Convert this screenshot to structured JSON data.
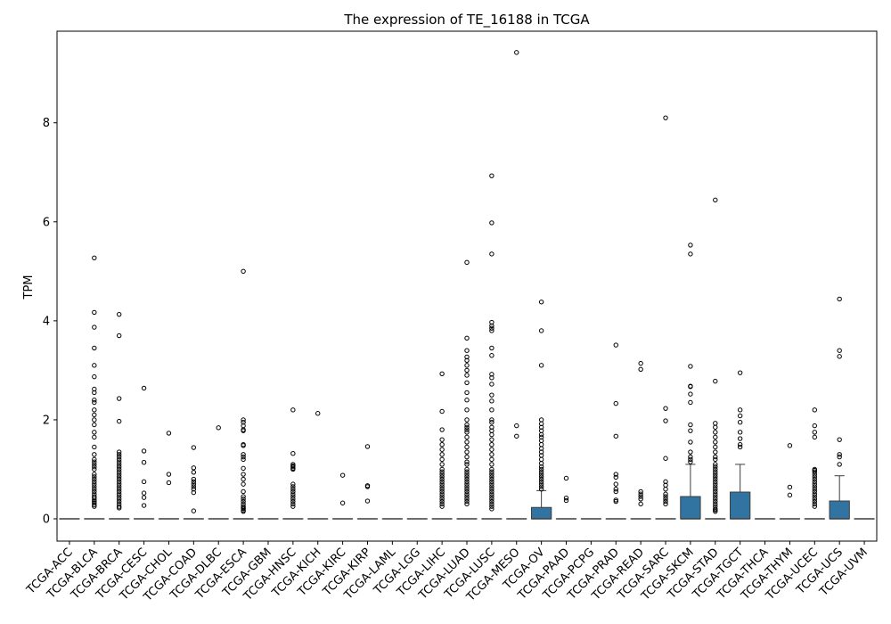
{
  "chart_data": {
    "type": "box",
    "title": "The expression of TE_16188 in TCGA",
    "xlabel": "",
    "ylabel": "TPM",
    "ylim": [
      -0.45,
      9.85
    ],
    "yticks": [
      "0",
      "2",
      "4",
      "6",
      "8"
    ],
    "grid": false,
    "box_color": "#3274a1",
    "categories": [
      "TCGA-ACC",
      "TCGA-BLCA",
      "TCGA-BRCA",
      "TCGA-CESC",
      "TCGA-CHOL",
      "TCGA-COAD",
      "TCGA-DLBC",
      "TCGA-ESCA",
      "TCGA-GBM",
      "TCGA-HNSC",
      "TCGA-KICH",
      "TCGA-KIRC",
      "TCGA-KIRP",
      "TCGA-LAML",
      "TCGA-LGG",
      "TCGA-LIHC",
      "TCGA-LUAD",
      "TCGA-LUSC",
      "TCGA-MESO",
      "TCGA-OV",
      "TCGA-PAAD",
      "TCGA-PCPG",
      "TCGA-PRAD",
      "TCGA-READ",
      "TCGA-SARC",
      "TCGA-SKCM",
      "TCGA-STAD",
      "TCGA-TGCT",
      "TCGA-THCA",
      "TCGA-THYM",
      "TCGA-UCEC",
      "TCGA-UCS",
      "TCGA-UVM"
    ],
    "boxes": [
      {
        "q1": 0,
        "median": 0,
        "q3": 0,
        "whisker_low": 0,
        "whisker_high": 0
      },
      {
        "q1": 0,
        "median": 0,
        "q3": 0,
        "whisker_low": 0,
        "whisker_high": 0
      },
      {
        "q1": 0,
        "median": 0,
        "q3": 0,
        "whisker_low": 0,
        "whisker_high": 0
      },
      {
        "q1": 0,
        "median": 0,
        "q3": 0,
        "whisker_low": 0,
        "whisker_high": 0
      },
      {
        "q1": 0,
        "median": 0,
        "q3": 0,
        "whisker_low": 0,
        "whisker_high": 0
      },
      {
        "q1": 0,
        "median": 0,
        "q3": 0,
        "whisker_low": 0,
        "whisker_high": 0
      },
      {
        "q1": 0,
        "median": 0,
        "q3": 0,
        "whisker_low": 0,
        "whisker_high": 0
      },
      {
        "q1": 0,
        "median": 0,
        "q3": 0,
        "whisker_low": 0,
        "whisker_high": 0
      },
      {
        "q1": 0,
        "median": 0,
        "q3": 0,
        "whisker_low": 0,
        "whisker_high": 0
      },
      {
        "q1": 0,
        "median": 0,
        "q3": 0,
        "whisker_low": 0,
        "whisker_high": 0
      },
      {
        "q1": 0,
        "median": 0,
        "q3": 0,
        "whisker_low": 0,
        "whisker_high": 0
      },
      {
        "q1": 0,
        "median": 0,
        "q3": 0,
        "whisker_low": 0,
        "whisker_high": 0
      },
      {
        "q1": 0,
        "median": 0,
        "q3": 0,
        "whisker_low": 0,
        "whisker_high": 0
      },
      {
        "q1": 0,
        "median": 0,
        "q3": 0,
        "whisker_low": 0,
        "whisker_high": 0
      },
      {
        "q1": 0,
        "median": 0,
        "q3": 0,
        "whisker_low": 0,
        "whisker_high": 0
      },
      {
        "q1": 0,
        "median": 0,
        "q3": 0,
        "whisker_low": 0,
        "whisker_high": 0
      },
      {
        "q1": 0,
        "median": 0,
        "q3": 0,
        "whisker_low": 0,
        "whisker_high": 0
      },
      {
        "q1": 0,
        "median": 0,
        "q3": 0,
        "whisker_low": 0,
        "whisker_high": 0
      },
      {
        "q1": 0,
        "median": 0,
        "q3": 0,
        "whisker_low": 0,
        "whisker_high": 0
      },
      {
        "q1": 0,
        "median": 0,
        "q3": 0.23,
        "whisker_low": 0,
        "whisker_high": 0.57
      },
      {
        "q1": 0,
        "median": 0,
        "q3": 0,
        "whisker_low": 0,
        "whisker_high": 0
      },
      {
        "q1": 0,
        "median": 0,
        "q3": 0,
        "whisker_low": 0,
        "whisker_high": 0
      },
      {
        "q1": 0,
        "median": 0,
        "q3": 0,
        "whisker_low": 0,
        "whisker_high": 0
      },
      {
        "q1": 0,
        "median": 0,
        "q3": 0,
        "whisker_low": 0,
        "whisker_high": 0
      },
      {
        "q1": 0,
        "median": 0,
        "q3": 0,
        "whisker_low": 0,
        "whisker_high": 0
      },
      {
        "q1": 0,
        "median": 0,
        "q3": 0.45,
        "whisker_low": 0,
        "whisker_high": 1.1
      },
      {
        "q1": 0,
        "median": 0,
        "q3": 0,
        "whisker_low": 0,
        "whisker_high": 0
      },
      {
        "q1": 0,
        "median": 0,
        "q3": 0.54,
        "whisker_low": 0,
        "whisker_high": 1.1
      },
      {
        "q1": 0,
        "median": 0,
        "q3": 0,
        "whisker_low": 0,
        "whisker_high": 0
      },
      {
        "q1": 0,
        "median": 0,
        "q3": 0,
        "whisker_low": 0,
        "whisker_high": 0
      },
      {
        "q1": 0,
        "median": 0,
        "q3": 0,
        "whisker_low": 0,
        "whisker_high": 0
      },
      {
        "q1": 0,
        "median": 0,
        "q3": 0.36,
        "whisker_low": 0,
        "whisker_high": 0.87
      },
      {
        "q1": 0,
        "median": 0,
        "q3": 0,
        "whisker_low": 0,
        "whisker_high": 0
      }
    ],
    "outliers": [
      [],
      [
        5.27,
        4.17,
        3.87,
        3.45,
        3.1,
        2.87,
        2.62,
        2.55,
        2.4,
        2.35,
        2.2,
        2.1,
        2.0,
        1.9,
        1.75,
        1.65,
        1.45,
        1.3,
        1.2,
        1.15,
        1.1,
        1.05,
        1.0,
        0.9,
        0.85,
        0.8,
        0.75,
        0.7,
        0.65,
        0.6,
        0.55,
        0.5,
        0.45,
        0.42,
        0.38,
        0.35,
        0.32,
        0.28,
        0.25
      ],
      [
        4.13,
        3.7,
        2.43,
        1.97,
        1.35,
        1.3,
        1.25,
        1.2,
        1.15,
        1.1,
        1.05,
        1.0,
        0.95,
        0.9,
        0.85,
        0.8,
        0.75,
        0.7,
        0.65,
        0.6,
        0.55,
        0.5,
        0.45,
        0.4,
        0.35,
        0.3,
        0.25,
        0.22
      ],
      [
        2.64,
        1.37,
        1.14,
        0.75,
        0.52,
        0.43,
        0.27
      ],
      [
        1.73,
        0.9,
        0.73
      ],
      [
        1.44,
        1.03,
        0.94,
        0.8,
        0.75,
        0.7,
        0.65,
        0.6,
        0.53,
        0.16
      ],
      [
        1.84
      ],
      [
        5.0,
        2.0,
        1.95,
        1.88,
        1.8,
        1.78,
        1.5,
        1.48,
        1.3,
        1.25,
        1.2,
        1.02,
        0.9,
        0.8,
        0.7,
        0.55,
        0.45,
        0.4,
        0.35,
        0.3,
        0.25,
        0.22,
        0.2,
        0.17,
        0.15
      ],
      [],
      [
        2.2,
        1.32,
        1.1,
        1.07,
        1.05,
        1.02,
        1.0,
        0.7,
        0.65,
        0.6,
        0.55,
        0.5,
        0.45,
        0.4,
        0.35,
        0.3,
        0.25
      ],
      [
        2.13
      ],
      [
        0.88,
        0.32
      ],
      [
        1.46,
        0.67,
        0.65,
        0.36
      ],
      [],
      [],
      [
        2.93,
        2.17,
        1.8,
        1.6,
        1.5,
        1.4,
        1.3,
        1.2,
        1.1,
        1.0,
        0.95,
        0.9,
        0.85,
        0.8,
        0.75,
        0.7,
        0.65,
        0.6,
        0.55,
        0.5,
        0.45,
        0.4,
        0.35,
        0.3,
        0.25
      ],
      [
        5.18,
        3.65,
        3.4,
        3.27,
        3.2,
        3.1,
        3.0,
        2.9,
        2.75,
        2.55,
        2.4,
        2.2,
        2.0,
        1.9,
        1.85,
        1.8,
        1.75,
        1.65,
        1.55,
        1.45,
        1.35,
        1.25,
        1.15,
        1.1,
        1.0,
        0.95,
        0.9,
        0.85,
        0.8,
        0.75,
        0.7,
        0.65,
        0.6,
        0.55,
        0.5,
        0.45,
        0.4,
        0.35,
        0.3
      ],
      [
        6.93,
        5.98,
        5.35,
        3.97,
        3.9,
        3.85,
        3.8,
        3.45,
        3.3,
        2.92,
        2.85,
        2.72,
        2.5,
        2.38,
        2.2,
        2.0,
        1.95,
        1.85,
        1.78,
        1.7,
        1.6,
        1.5,
        1.4,
        1.3,
        1.2,
        1.1,
        1.0,
        0.95,
        0.9,
        0.85,
        0.8,
        0.75,
        0.7,
        0.65,
        0.6,
        0.55,
        0.5,
        0.45,
        0.4,
        0.35,
        0.3,
        0.25,
        0.2
      ],
      [
        9.42,
        1.88,
        1.67
      ],
      [
        4.38,
        3.8,
        3.1,
        2.0,
        1.92,
        1.85,
        1.78,
        1.7,
        1.65,
        1.58,
        1.5,
        1.42,
        1.35,
        1.28,
        1.2,
        1.12,
        1.05,
        1.0,
        0.95,
        0.9,
        0.85,
        0.8,
        0.75,
        0.7,
        0.65,
        0.6
      ],
      [
        0.82,
        0.42,
        0.37
      ],
      [],
      [
        3.51,
        2.33,
        1.67,
        0.9,
        0.84,
        0.7,
        0.6,
        0.55,
        0.38,
        0.35
      ],
      [
        3.14,
        3.02,
        0.55,
        0.5,
        0.45,
        0.4,
        0.3
      ],
      [
        8.1,
        2.23,
        1.98,
        1.22,
        0.75,
        0.68,
        0.6,
        0.5,
        0.45,
        0.4,
        0.35,
        0.3
      ],
      [
        5.53,
        5.35,
        3.08,
        2.68,
        2.67,
        2.52,
        2.35,
        1.9,
        1.78,
        1.55,
        1.35,
        1.25,
        1.2,
        1.15
      ],
      [
        6.44,
        2.78,
        1.93,
        1.85,
        1.75,
        1.65,
        1.55,
        1.45,
        1.35,
        1.25,
        1.2,
        1.1,
        1.05,
        1.0,
        0.95,
        0.9,
        0.85,
        0.8,
        0.75,
        0.7,
        0.65,
        0.6,
        0.55,
        0.5,
        0.45,
        0.4,
        0.35,
        0.3,
        0.25,
        0.2,
        0.18,
        0.15
      ],
      [
        2.95,
        2.2,
        2.08,
        1.95,
        1.75,
        1.62,
        1.5,
        1.45
      ],
      [],
      [
        1.48,
        0.64,
        0.48
      ],
      [
        2.2,
        1.88,
        1.75,
        1.65,
        1.0,
        0.98,
        0.95,
        0.9,
        0.85,
        0.8,
        0.75,
        0.7,
        0.65,
        0.6,
        0.55,
        0.5,
        0.45,
        0.4,
        0.35,
        0.3,
        0.25
      ],
      [
        4.44,
        3.4,
        3.28,
        1.6,
        1.3,
        1.25,
        1.1
      ],
      []
    ]
  }
}
